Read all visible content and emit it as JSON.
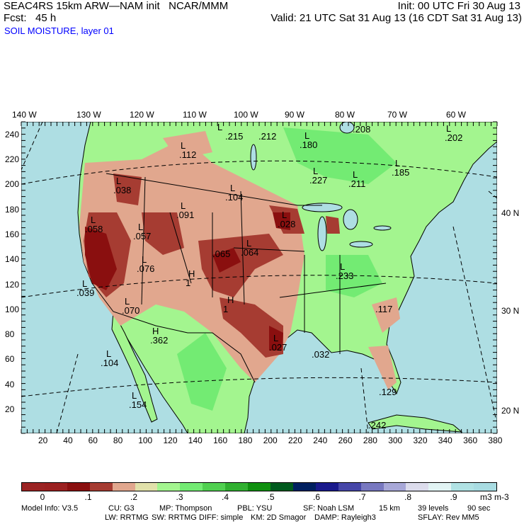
{
  "header": {
    "title": "SEAC4RS 15km ARW—NAM init   NCAR/MMM",
    "init": "Init: 00 UTC Fri 30 Aug 13",
    "fcst": "Fcst:   45 h",
    "valid": "Valid: 21 UTC Sat 31 Aug 13 (16 CDT Sat 31 Aug 13)",
    "field": "SOIL MOISTURE, layer 01",
    "field_color": "#0000ff"
  },
  "axes": {
    "top_lon": [
      "140 W",
      "130 W",
      "120 W",
      "110 W",
      "100 W",
      "90 W",
      "80 W",
      "70 W",
      "60 W"
    ],
    "bottom_x": [
      "20",
      "40",
      "60",
      "80",
      "100",
      "120",
      "140",
      "160",
      "180",
      "200",
      "220",
      "240",
      "260",
      "280",
      "300",
      "320",
      "340",
      "360",
      "380"
    ],
    "left_y": [
      "20",
      "40",
      "60",
      "80",
      "100",
      "120",
      "140",
      "160",
      "180",
      "200",
      "220",
      "240"
    ],
    "right_lat": [
      "40 N",
      "30 N",
      "20 N"
    ]
  },
  "map_labels": [
    {
      "k": "L",
      "v": ".215"
    },
    {
      "k": "",
      "v": ".212"
    },
    {
      "k": "L",
      "v": ".112"
    },
    {
      "k": "L",
      "v": ".180"
    },
    {
      "k": "",
      "v": ".208"
    },
    {
      "k": "L",
      "v": ".202"
    },
    {
      "k": "L",
      "v": ".185"
    },
    {
      "k": "L",
      "v": ".227"
    },
    {
      "k": "L",
      "v": ".211"
    },
    {
      "k": "L",
      "v": ".038"
    },
    {
      "k": "L",
      "v": ".104"
    },
    {
      "k": "L",
      "v": ".091"
    },
    {
      "k": "L",
      "v": ".028"
    },
    {
      "k": "L",
      "v": ".058"
    },
    {
      "k": "L",
      "v": ".057"
    },
    {
      "k": "",
      "v": ".065"
    },
    {
      "k": "L",
      "v": ".064"
    },
    {
      "k": "L",
      "v": ".076"
    },
    {
      "k": "H",
      "v": "1"
    },
    {
      "k": "L",
      "v": ".233"
    },
    {
      "k": "L",
      "v": ".039"
    },
    {
      "k": "L",
      "v": ".070"
    },
    {
      "k": "H",
      "v": "1"
    },
    {
      "k": "H",
      "v": ".362"
    },
    {
      "k": "L",
      "v": ".027"
    },
    {
      "k": "",
      "v": ".117"
    },
    {
      "k": "L",
      "v": ".104"
    },
    {
      "k": "",
      "v": ".032"
    },
    {
      "k": "",
      "v": ".129"
    },
    {
      "k": "L",
      "v": ".154"
    },
    {
      "k": "",
      "v": ".242"
    }
  ],
  "colorbar": {
    "colors": [
      "#9b2323",
      "#9b2020",
      "#8a0f0f",
      "#a63c32",
      "#e1a78e",
      "#e1e1aa",
      "#a3f58f",
      "#73eb73",
      "#50d050",
      "#30b030",
      "#0f900f",
      "#005a1e",
      "#002060",
      "#1a1a8c",
      "#4646a8",
      "#7878c0",
      "#a8a8d8",
      "#dcdcec",
      "#e2f4f4",
      "#b0e2e4",
      "#a8dce2"
    ],
    "labels": [
      "0",
      ".1",
      ".2",
      ".3",
      ".4",
      ".5",
      ".6",
      ".7",
      ".8",
      ".9"
    ],
    "units": "m3 m-3"
  },
  "footer": {
    "line1": [
      "Model Info: V3.5",
      "CU: G3",
      "MP: Thompson",
      "PBL: YSU",
      "SF: Noah LSM",
      "15 km",
      "39 levels",
      "90 sec"
    ],
    "line2": [
      "LW: RRTMG",
      "SW: RRTMG",
      "DIFF: simple",
      "KM: 2D Smagor",
      "DAMP: Rayleigh3",
      "SFLAY: Rev MM5"
    ]
  },
  "colors": {
    "ocean": "#aedee3",
    "land": "#a3f58f",
    "dry": "#e1a78e",
    "drier": "#a63c32",
    "driest": "#8a0f0f",
    "wet": "#73eb73"
  }
}
